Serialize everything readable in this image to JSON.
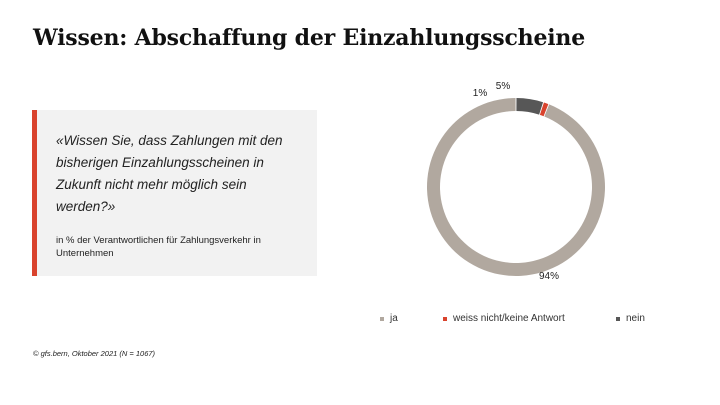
{
  "title": "Wissen: Abschaffung der Einzahlungsscheine",
  "question": "«Wissen Sie, dass Zahlungen mit den bisherigen Einzahlungsscheinen in Zukunft nicht mehr möglich sein werden?»",
  "subtext": "in % der Verantwortlichen für Zahlungsverkehr in Unternehmen",
  "footer": "© gfs.bern, Oktober 2021 (N = 1067)",
  "chart_data": {
    "type": "pie",
    "style": "donut",
    "series": [
      {
        "name": "ja",
        "value": 94,
        "label": "94%",
        "color": "#b1a89f"
      },
      {
        "name": "weiss nicht/keine Antwort",
        "value": 1,
        "label": "1%",
        "color": "#d9432d"
      },
      {
        "name": "nein",
        "value": 5,
        "label": "5%",
        "color": "#575757"
      }
    ],
    "legend_position": "bottom"
  }
}
